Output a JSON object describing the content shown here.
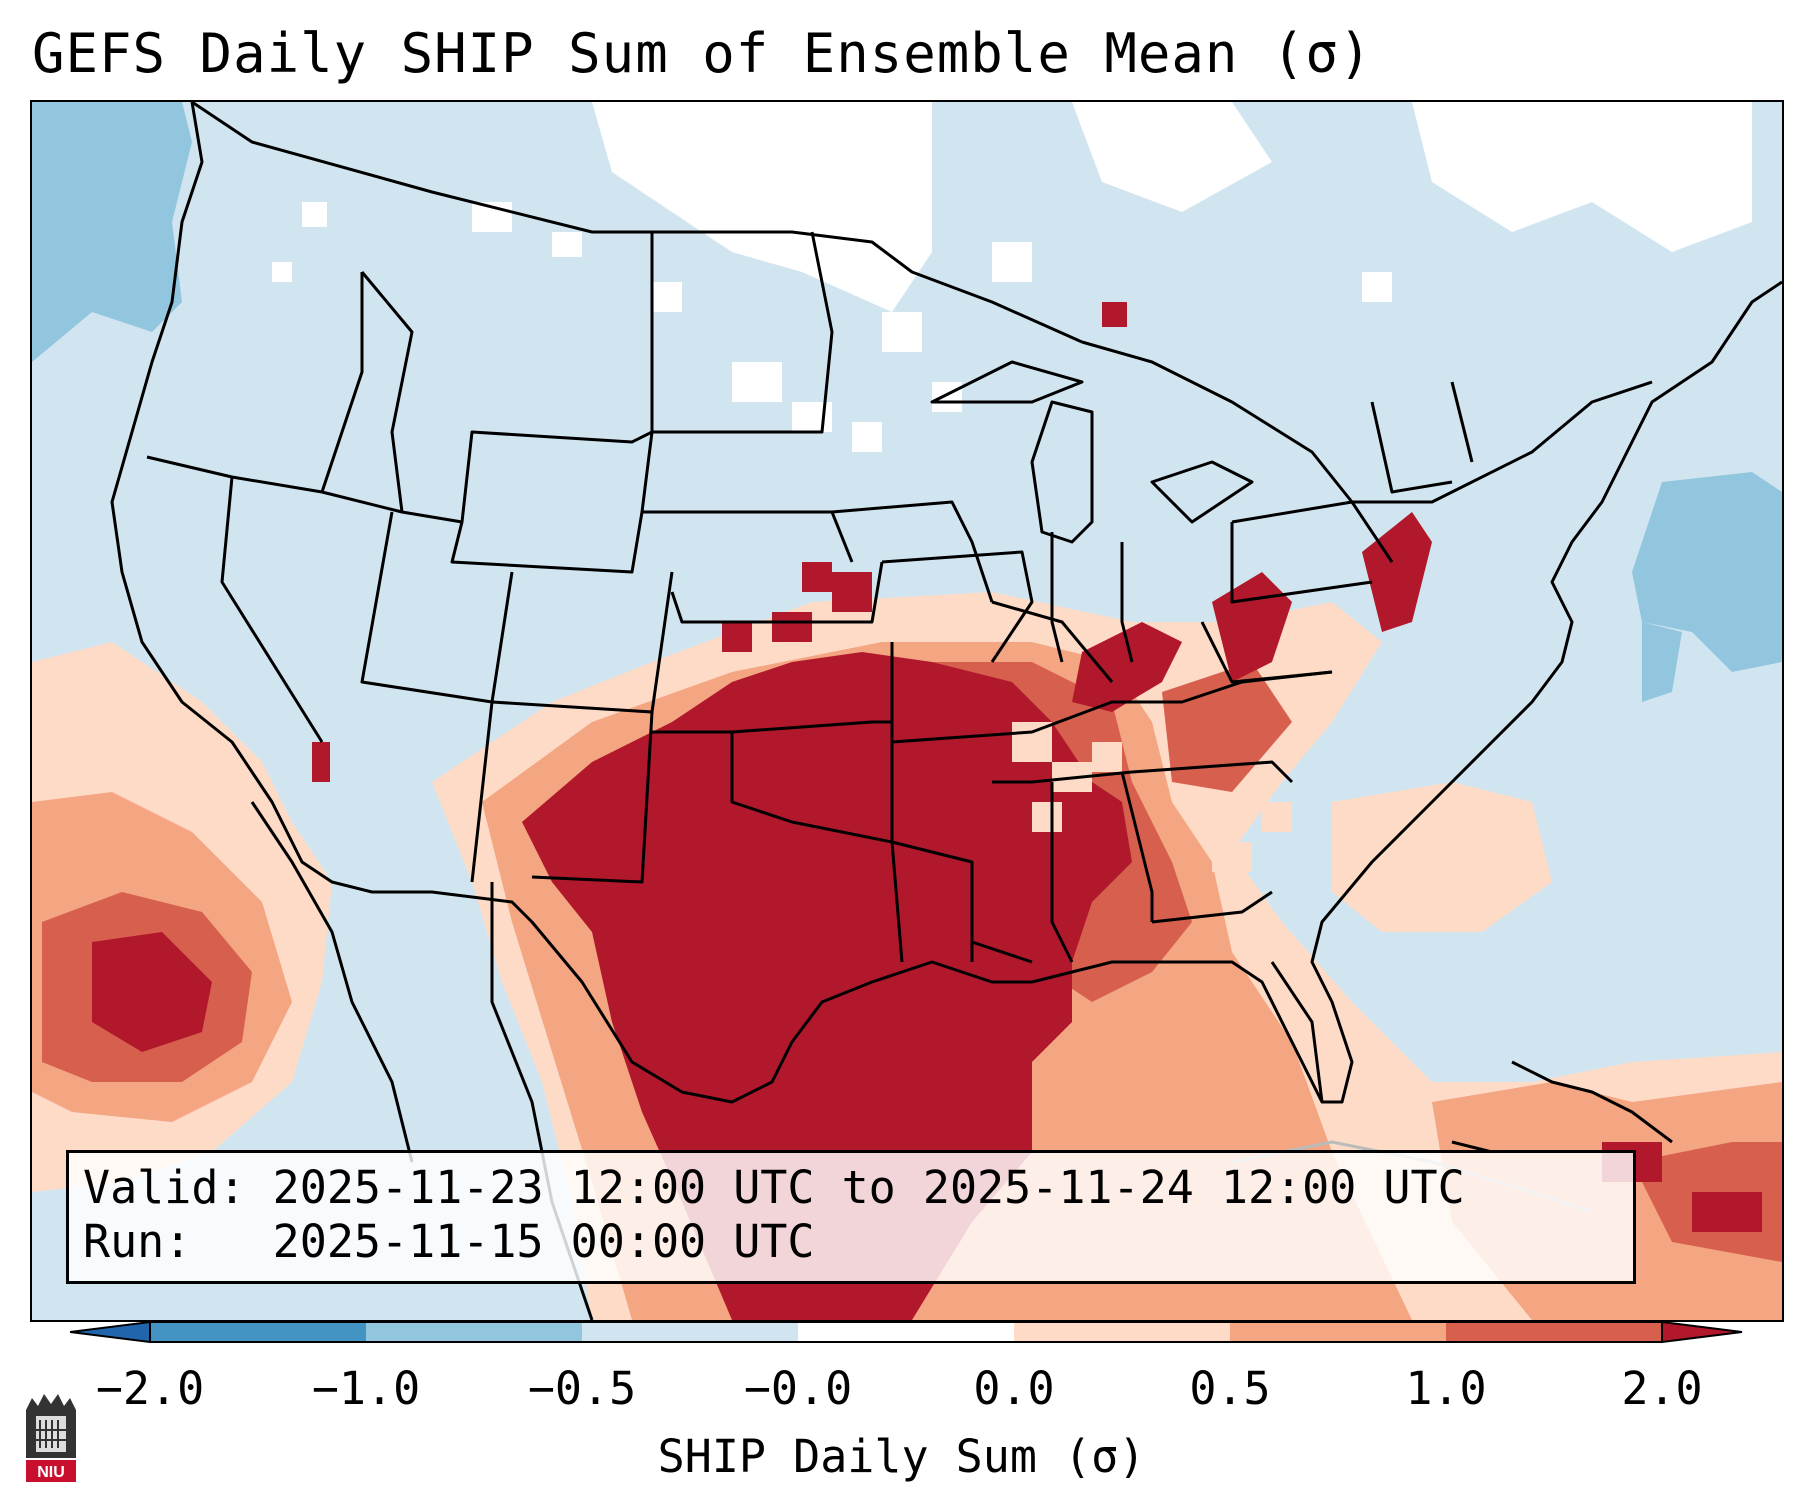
{
  "title": "GEFS Daily SHIP Sum of Ensemble Mean (σ)",
  "info": {
    "valid_line": "Valid: 2025-11-23 12:00 UTC to 2025-11-24 12:00 UTC",
    "run_line": "Run:   2025-11-15 00:00 UTC"
  },
  "colorbar": {
    "label": "SHIP Daily Sum (σ)",
    "ticks": [
      "−2.0",
      "−1.0",
      "−0.5",
      "−0.0",
      "0.0",
      "0.5",
      "1.0",
      "2.0"
    ],
    "colors": [
      "#2166ac",
      "#4393c3",
      "#92c5de",
      "#d1e5f0",
      "#ffffff",
      "#fddbc7",
      "#f4a582",
      "#d6604d",
      "#b2182b"
    ]
  },
  "legend_bins": [
    {
      "range": "< −2.0",
      "color": "#2166ac"
    },
    {
      "range": "−2.0 to −1.0",
      "color": "#4393c3"
    },
    {
      "range": "−1.0 to −0.5",
      "color": "#92c5de"
    },
    {
      "range": "−0.5 to −0.0",
      "color": "#d1e5f0"
    },
    {
      "range": "−0.0 to 0.0",
      "color": "#ffffff"
    },
    {
      "range": "0.0 to 0.5",
      "color": "#fddbc7"
    },
    {
      "range": "0.5 to 1.0",
      "color": "#f4a582"
    },
    {
      "range": "1.0 to 2.0",
      "color": "#d6604d"
    },
    {
      "range": "> 2.0",
      "color": "#b2182b"
    }
  ],
  "logo": {
    "text": "NIU"
  }
}
